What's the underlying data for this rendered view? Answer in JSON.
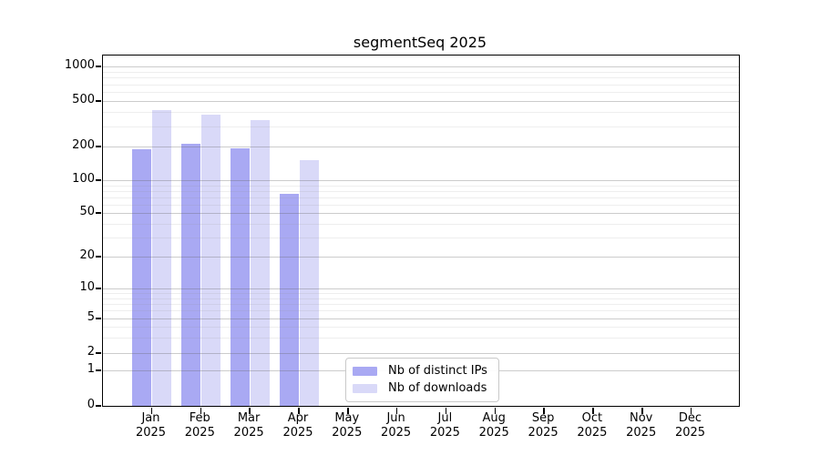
{
  "title": "segmentSeq 2025",
  "colors": {
    "ips": "#a9a9f3",
    "downloads": "#d9d9f8",
    "gridline_major": "#cccccc",
    "gridline_minor": "#ececec",
    "axis": "#000000"
  },
  "legend": {
    "items": [
      {
        "key": "ips",
        "label": "Nb of distinct IPs"
      },
      {
        "key": "downloads",
        "label": "Nb of downloads"
      }
    ]
  },
  "y_axis": {
    "tick_labels": [
      "1000",
      "500",
      "200",
      "100",
      "50",
      "20",
      "10",
      "5",
      "2",
      "1",
      "0"
    ]
  },
  "x_axis": {
    "months": [
      "Jan",
      "Feb",
      "Mar",
      "Apr",
      "May",
      "Jun",
      "Jul",
      "Aug",
      "Sep",
      "Oct",
      "Nov",
      "Dec"
    ],
    "year": "2025"
  },
  "chart_data": {
    "type": "bar",
    "title": "segmentSeq 2025",
    "categories": [
      "Jan 2025",
      "Feb 2025",
      "Mar 2025",
      "Apr 2025",
      "May 2025",
      "Jun 2025",
      "Jul 2025",
      "Aug 2025",
      "Sep 2025",
      "Oct 2025",
      "Nov 2025",
      "Dec 2025"
    ],
    "series": [
      {
        "name": "Nb of distinct IPs",
        "values": [
          189,
          211,
          193,
          75,
          null,
          null,
          null,
          null,
          null,
          null,
          null,
          null
        ]
      },
      {
        "name": "Nb of downloads",
        "values": [
          416,
          380,
          340,
          152,
          null,
          null,
          null,
          null,
          null,
          null,
          null,
          null
        ]
      }
    ],
    "y_ticks": [
      0,
      1,
      2,
      5,
      10,
      20,
      50,
      100,
      200,
      500,
      1000
    ],
    "y_minor_ticks": [
      3,
      4,
      6,
      7,
      8,
      9,
      30,
      40,
      60,
      70,
      80,
      90,
      300,
      400,
      600,
      700,
      800,
      900
    ],
    "y_scale": "log-like (custom ticks 0,1,2,5,...,1000)",
    "ylim": [
      0,
      1200
    ],
    "grid": true,
    "legend_position": "inside bottom-center",
    "xlabel": "",
    "ylabel": ""
  }
}
